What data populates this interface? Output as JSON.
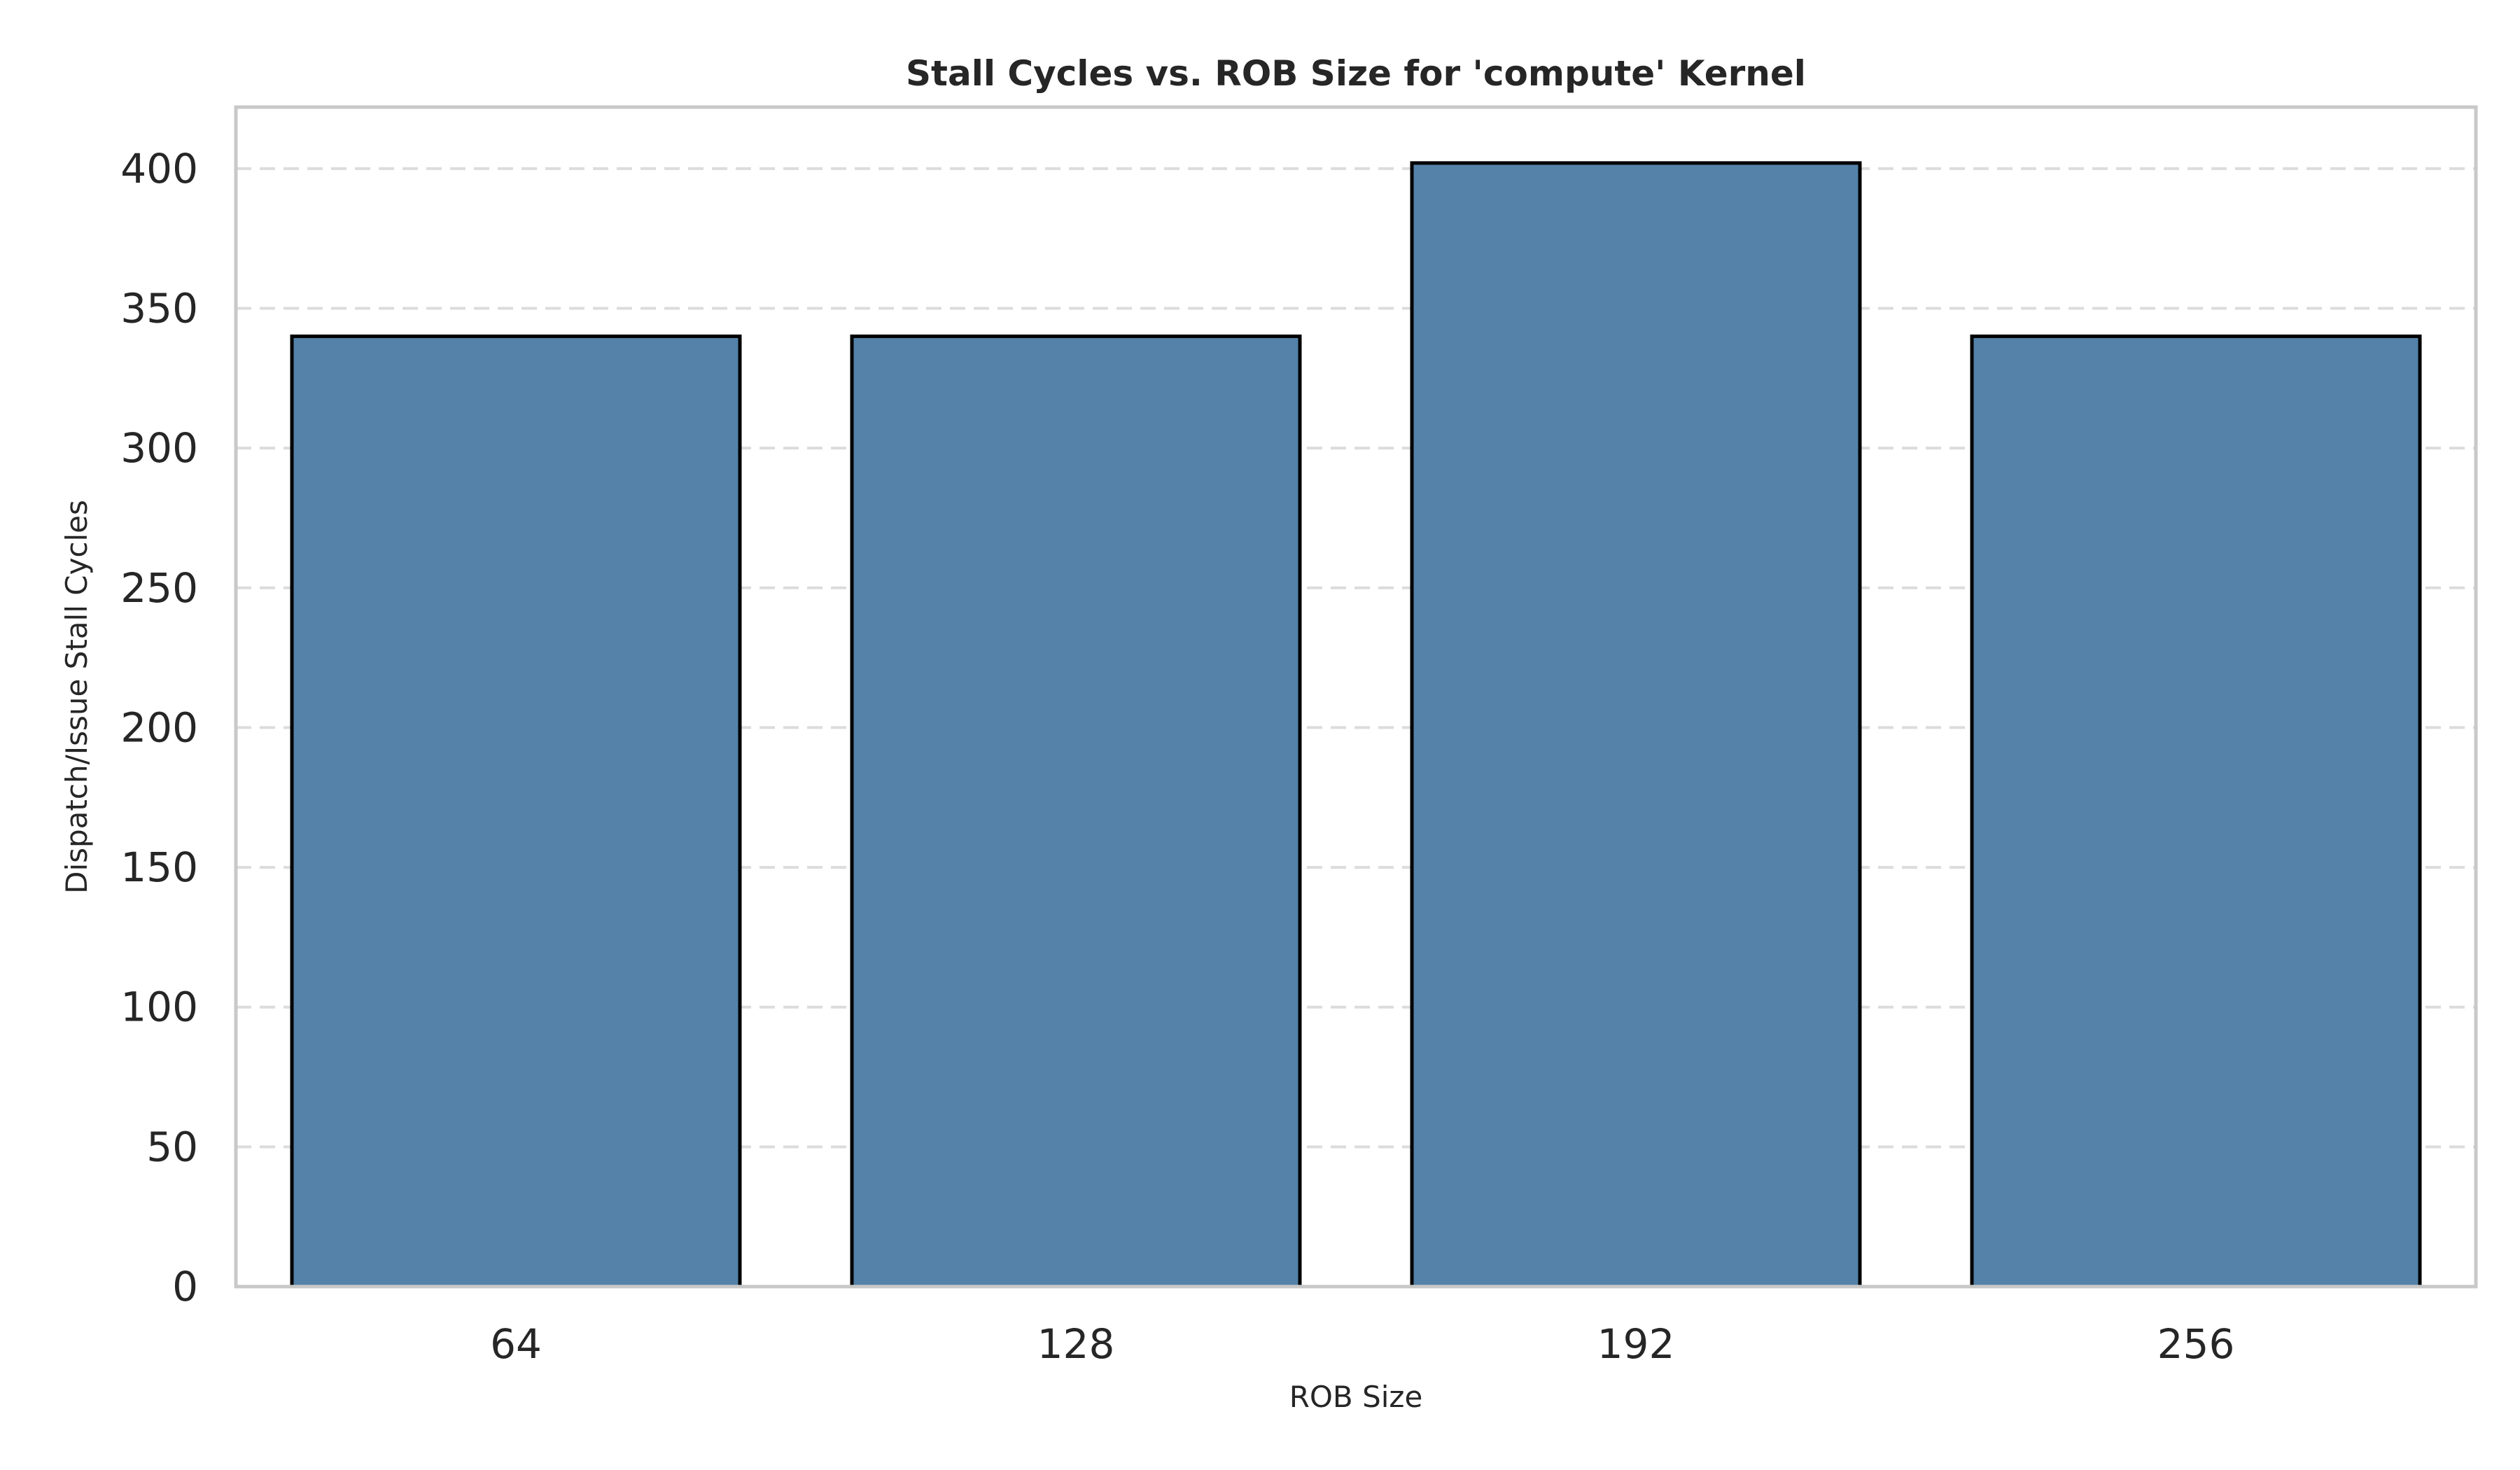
{
  "chart_data": {
    "type": "bar",
    "title": "Stall Cycles vs. ROB Size for 'compute' Kernel",
    "xlabel": "ROB Size",
    "ylabel": "Dispatch/Issue Stall Cycles",
    "categories": [
      "64",
      "128",
      "192",
      "256"
    ],
    "values": [
      340,
      340,
      402,
      340
    ],
    "ylim": [
      0,
      422
    ],
    "yticks": [
      0,
      50,
      100,
      150,
      200,
      250,
      300,
      350,
      400
    ],
    "grid": "horizontal dashed",
    "legend": "none",
    "colors": {
      "bar_fill": "#5482a8",
      "bar_edge": "#000000",
      "grid": "#dcdcdc",
      "frame": "#c8c8c8",
      "text": "#262626"
    }
  }
}
